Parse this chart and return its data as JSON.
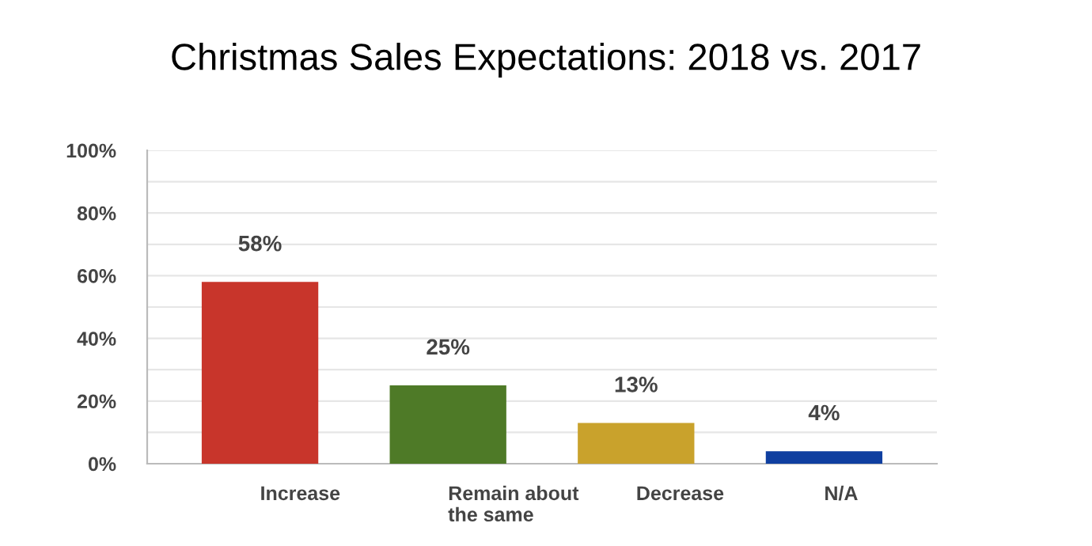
{
  "chart_data": {
    "type": "bar",
    "title": "Christmas Sales Expectations: 2018 vs. 2017",
    "categories": [
      "Increase",
      "Remain about the same",
      "Decrease",
      "N/A"
    ],
    "values": [
      58,
      25,
      13,
      4
    ],
    "colors": [
      "#c8352b",
      "#4e7a27",
      "#c9a22c",
      "#0f3fa0"
    ],
    "value_labels": [
      "58%",
      "25%",
      "13%",
      "4%"
    ],
    "ylim": [
      0,
      100
    ],
    "yticks": [
      {
        "value": 0,
        "label": "0%"
      },
      {
        "value": 10,
        "label": null
      },
      {
        "value": 20,
        "label": "20%"
      },
      {
        "value": 30,
        "label": null
      },
      {
        "value": 40,
        "label": "40%"
      },
      {
        "value": 50,
        "label": null
      },
      {
        "value": 60,
        "label": "60%"
      },
      {
        "value": 70,
        "label": null
      },
      {
        "value": 80,
        "label": "80%"
      },
      {
        "value": 90,
        "label": null
      },
      {
        "value": 100,
        "label": "100%"
      }
    ],
    "grid": "y",
    "legend": false
  }
}
